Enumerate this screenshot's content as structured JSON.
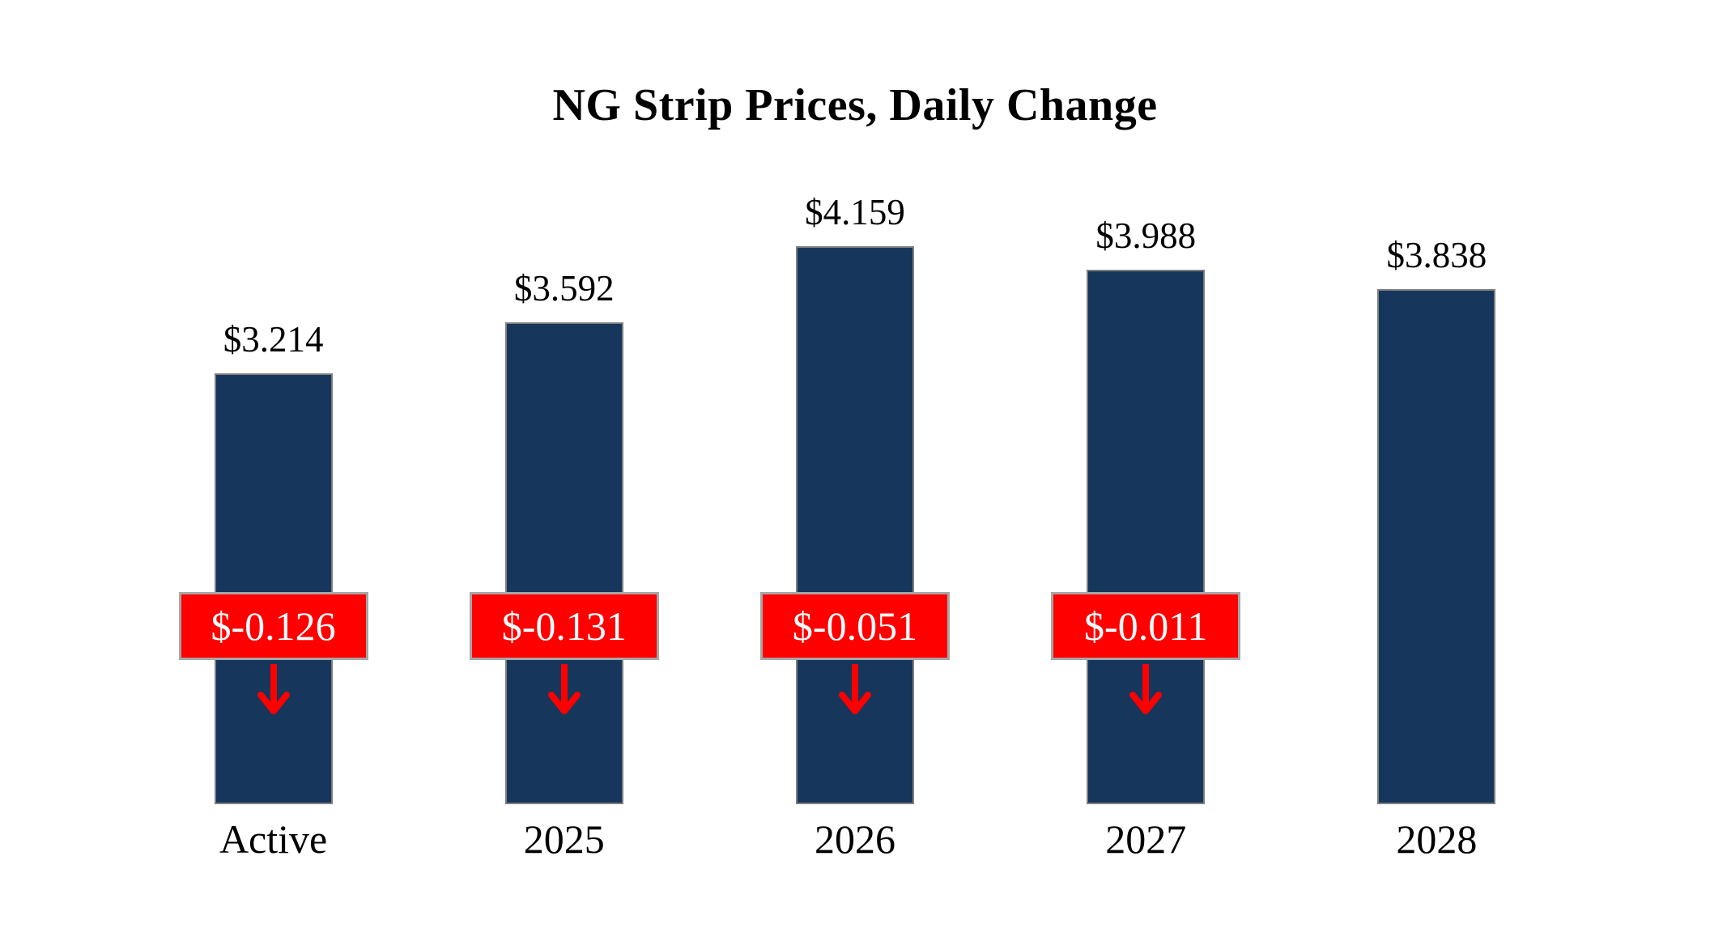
{
  "chart_data": {
    "type": "bar",
    "title": "NG Strip Prices, Daily Change",
    "categories": [
      "Active",
      "2025",
      "2026",
      "2027",
      "2028"
    ],
    "series": [
      {
        "name": "NG Strip Price",
        "values": [
          3.214,
          3.592,
          4.159,
          3.988,
          3.838
        ]
      }
    ],
    "value_labels": [
      "$3.214",
      "$3.592",
      "$4.159",
      "$3.988",
      "$3.838"
    ],
    "daily_changes": [
      -0.126,
      -0.131,
      -0.051,
      -0.011,
      null
    ],
    "change_labels": [
      "$-0.126",
      "$-0.131",
      "$-0.051",
      "$-0.011",
      null
    ],
    "ylim": [
      0,
      5
    ],
    "grid": false,
    "legend": false,
    "axes_shown": false,
    "colors": {
      "bar_fill": "#16365c",
      "bar_border": "#7f7f7f",
      "change_box_fill": "#ff0000",
      "change_box_border": "#a6a6a6",
      "change_text": "#ffffff",
      "arrow": "#ff0000",
      "title_text": "#000000",
      "label_text": "#000000",
      "background": "#ffffff"
    }
  }
}
